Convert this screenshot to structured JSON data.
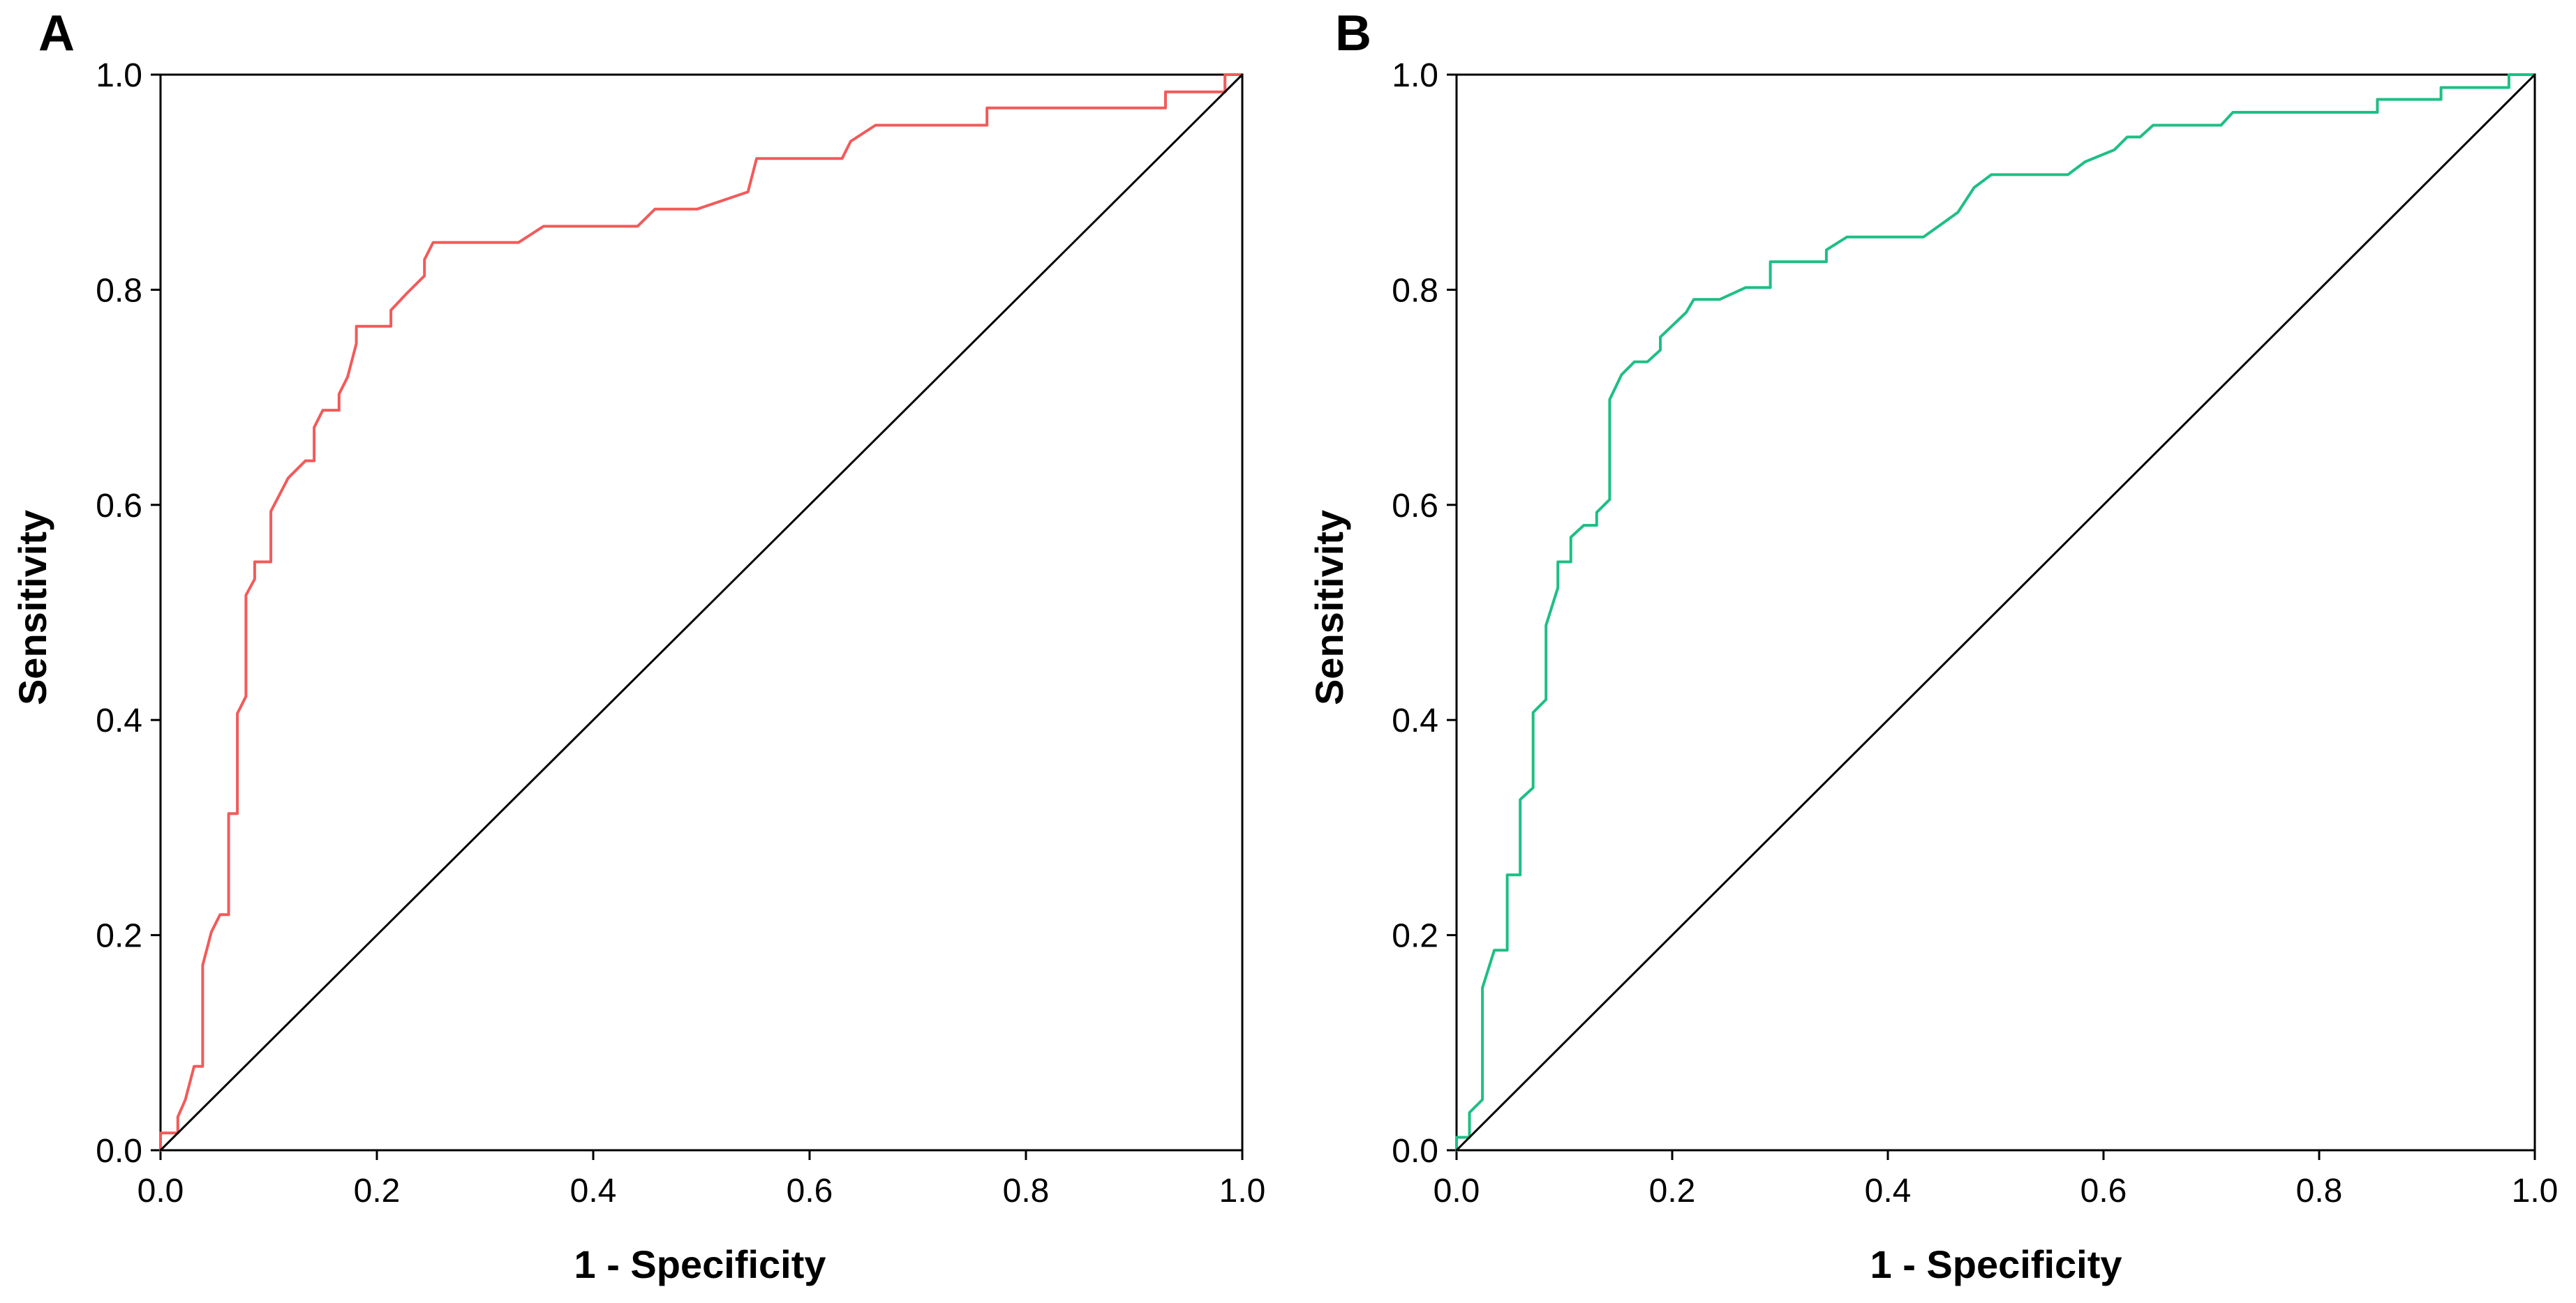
{
  "chart_data": [
    {
      "type": "line",
      "panel_label": "A",
      "title": "",
      "xlabel": "1 - Specificity",
      "ylabel": "Sensitivity",
      "xlim": [
        0.0,
        1.0
      ],
      "ylim": [
        0.0,
        1.0
      ],
      "xticks": [
        "0.0",
        "0.2",
        "0.4",
        "0.6",
        "0.8",
        "1.0"
      ],
      "yticks": [
        "0.0",
        "0.2",
        "0.4",
        "0.6",
        "0.8",
        "1.0"
      ],
      "grid": false,
      "legend": "none",
      "series": [
        {
          "name": "ROC curve",
          "color": "#f25a5a",
          "points": [
            [
              0.0,
              0.0
            ],
            [
              0.0,
              0.016
            ],
            [
              0.016,
              0.016
            ],
            [
              0.016,
              0.031
            ],
            [
              0.023,
              0.047
            ],
            [
              0.031,
              0.078
            ],
            [
              0.039,
              0.078
            ],
            [
              0.039,
              0.172
            ],
            [
              0.047,
              0.203
            ],
            [
              0.055,
              0.219
            ],
            [
              0.063,
              0.219
            ],
            [
              0.063,
              0.313
            ],
            [
              0.071,
              0.313
            ],
            [
              0.071,
              0.406
            ],
            [
              0.079,
              0.422
            ],
            [
              0.079,
              0.516
            ],
            [
              0.087,
              0.531
            ],
            [
              0.087,
              0.547
            ],
            [
              0.102,
              0.547
            ],
            [
              0.102,
              0.594
            ],
            [
              0.118,
              0.625
            ],
            [
              0.134,
              0.641
            ],
            [
              0.142,
              0.641
            ],
            [
              0.142,
              0.672
            ],
            [
              0.15,
              0.688
            ],
            [
              0.165,
              0.688
            ],
            [
              0.165,
              0.703
            ],
            [
              0.173,
              0.719
            ],
            [
              0.181,
              0.75
            ],
            [
              0.181,
              0.766
            ],
            [
              0.213,
              0.766
            ],
            [
              0.213,
              0.781
            ],
            [
              0.228,
              0.797
            ],
            [
              0.244,
              0.813
            ],
            [
              0.244,
              0.828
            ],
            [
              0.252,
              0.844
            ],
            [
              0.331,
              0.844
            ],
            [
              0.354,
              0.859
            ],
            [
              0.441,
              0.859
            ],
            [
              0.457,
              0.875
            ],
            [
              0.496,
              0.875
            ],
            [
              0.543,
              0.891
            ],
            [
              0.551,
              0.922
            ],
            [
              0.63,
              0.922
            ],
            [
              0.638,
              0.938
            ],
            [
              0.661,
              0.953
            ],
            [
              0.764,
              0.953
            ],
            [
              0.764,
              0.969
            ],
            [
              0.929,
              0.969
            ],
            [
              0.929,
              0.984
            ],
            [
              0.984,
              0.984
            ],
            [
              0.984,
              1.0
            ],
            [
              1.0,
              1.0
            ]
          ]
        },
        {
          "name": "reference line",
          "color": "#000000",
          "points": [
            [
              0.0,
              0.0
            ],
            [
              1.0,
              1.0
            ]
          ]
        }
      ]
    },
    {
      "type": "line",
      "panel_label": "B",
      "title": "",
      "xlabel": "1 - Specificity",
      "ylabel": "Sensitivity",
      "xlim": [
        0.0,
        1.0
      ],
      "ylim": [
        0.0,
        1.0
      ],
      "xticks": [
        "0.0",
        "0.2",
        "0.4",
        "0.6",
        "0.8",
        "1.0"
      ],
      "yticks": [
        "0.0",
        "0.2",
        "0.4",
        "0.6",
        "0.8",
        "1.0"
      ],
      "grid": false,
      "legend": "none",
      "series": [
        {
          "name": "ROC curve",
          "color": "#1dbf84",
          "points": [
            [
              0.0,
              0.0
            ],
            [
              0.0,
              0.012
            ],
            [
              0.012,
              0.012
            ],
            [
              0.012,
              0.035
            ],
            [
              0.024,
              0.047
            ],
            [
              0.024,
              0.151
            ],
            [
              0.035,
              0.186
            ],
            [
              0.047,
              0.186
            ],
            [
              0.047,
              0.256
            ],
            [
              0.059,
              0.256
            ],
            [
              0.059,
              0.326
            ],
            [
              0.071,
              0.337
            ],
            [
              0.071,
              0.407
            ],
            [
              0.083,
              0.419
            ],
            [
              0.083,
              0.488
            ],
            [
              0.094,
              0.523
            ],
            [
              0.094,
              0.547
            ],
            [
              0.106,
              0.547
            ],
            [
              0.106,
              0.57
            ],
            [
              0.118,
              0.581
            ],
            [
              0.13,
              0.581
            ],
            [
              0.13,
              0.593
            ],
            [
              0.142,
              0.605
            ],
            [
              0.142,
              0.698
            ],
            [
              0.153,
              0.721
            ],
            [
              0.165,
              0.733
            ],
            [
              0.177,
              0.733
            ],
            [
              0.189,
              0.744
            ],
            [
              0.189,
              0.756
            ],
            [
              0.213,
              0.779
            ],
            [
              0.22,
              0.791
            ],
            [
              0.244,
              0.791
            ],
            [
              0.268,
              0.802
            ],
            [
              0.291,
              0.802
            ],
            [
              0.291,
              0.826
            ],
            [
              0.343,
              0.826
            ],
            [
              0.343,
              0.837
            ],
            [
              0.362,
              0.849
            ],
            [
              0.433,
              0.849
            ],
            [
              0.465,
              0.872
            ],
            [
              0.48,
              0.895
            ],
            [
              0.496,
              0.907
            ],
            [
              0.567,
              0.907
            ],
            [
              0.583,
              0.919
            ],
            [
              0.61,
              0.93
            ],
            [
              0.622,
              0.942
            ],
            [
              0.634,
              0.942
            ],
            [
              0.646,
              0.953
            ],
            [
              0.709,
              0.953
            ],
            [
              0.72,
              0.965
            ],
            [
              0.854,
              0.965
            ],
            [
              0.854,
              0.977
            ],
            [
              0.913,
              0.977
            ],
            [
              0.913,
              0.988
            ],
            [
              0.976,
              0.988
            ],
            [
              0.976,
              1.0
            ],
            [
              1.0,
              1.0
            ]
          ]
        },
        {
          "name": "reference line",
          "color": "#000000",
          "points": [
            [
              0.0,
              0.0
            ],
            [
              1.0,
              1.0
            ]
          ]
        }
      ]
    }
  ]
}
